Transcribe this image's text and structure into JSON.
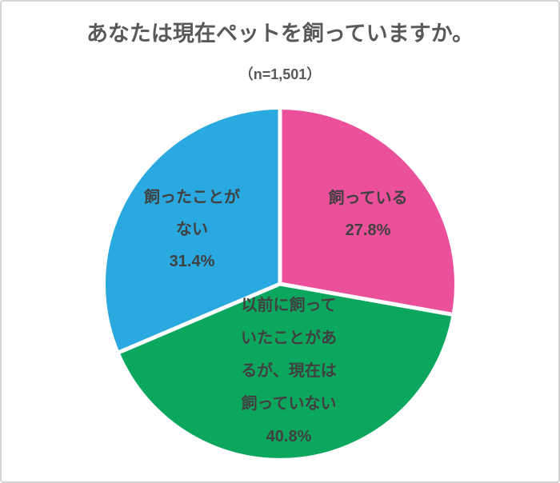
{
  "chart_data": {
    "type": "pie",
    "title": "あなたは現在ペットを飼っていますか。",
    "sample_size_label": "（n=1,501）",
    "start_angle_deg_from_top": 0,
    "direction": "clockwise",
    "legend": "none",
    "separator_color": "#FFFFFF",
    "title_color": "#595959",
    "label_text_color": "#404040",
    "slices": [
      {
        "label": "飼っている",
        "value_pct": 27.8,
        "pct_label": "27.8%",
        "color": "#EB519B",
        "label_lines": [
          "飼っている",
          "27.8%"
        ]
      },
      {
        "label": "以前に飼っていたことがあるが、現在は飼っていない",
        "value_pct": 40.8,
        "pct_label": "40.8%",
        "color": "#0CA75F",
        "label_lines": [
          "以前に飼って",
          "いたことがあ",
          "るが、現在は",
          "飼っていない",
          "40.8%"
        ]
      },
      {
        "label": "飼ったことがない",
        "value_pct": 31.4,
        "pct_label": "31.4%",
        "color": "#29A9E0",
        "label_lines": [
          "飼ったことが",
          "ない",
          "31.4%"
        ]
      }
    ]
  }
}
